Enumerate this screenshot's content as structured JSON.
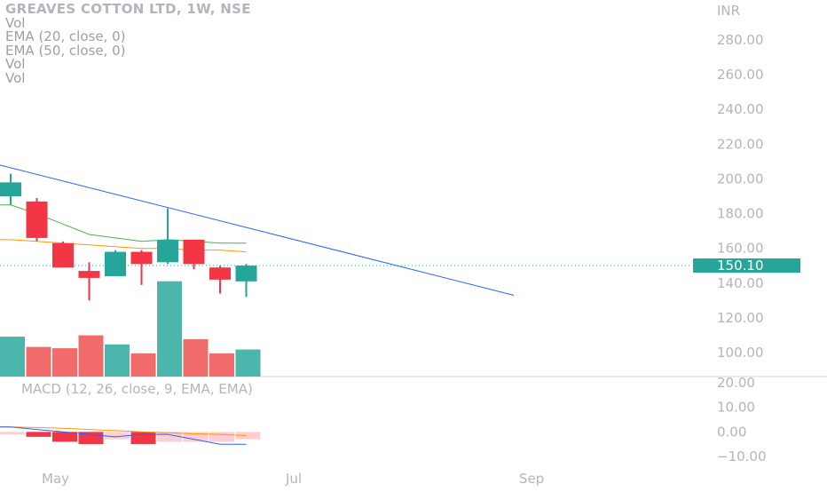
{
  "legend": {
    "title": "GREAVES COTTON LTD, 1W, NSE",
    "lines": [
      "Vol",
      "EMA (20, close, 0)",
      "EMA (50, close, 0)",
      "Vol",
      "Vol"
    ]
  },
  "currency": "INR",
  "price_axis_ticks": [
    "280.00",
    "260.00",
    "240.00",
    "220.00",
    "200.00",
    "180.00",
    "160.00",
    "140.00",
    "120.00",
    "100.00"
  ],
  "last_price_label": "150.10",
  "macd_label": "MACD (12, 26, close, 9, EMA, EMA)",
  "macd_axis_ticks": [
    "20.00",
    "10.00",
    "0.00",
    "−10.00"
  ],
  "time_axis_labels": [
    "May",
    "Jul",
    "Sep"
  ],
  "colors": {
    "up": "#26a69a",
    "down": "#f23645",
    "vol_up": "#4db6ac",
    "vol_down": "#f26b6b",
    "ema20": "#4caf50",
    "ema50": "#ff9800",
    "trendline": "#2962ff",
    "macd_line": "#2962ff",
    "signal_line": "#ff9800",
    "hist_neg": "#f23645",
    "hist_neg_light": "#ffcdd2"
  },
  "chart_data": {
    "type": "candlestick",
    "title": "GREAVES COTTON LTD, 1W, NSE",
    "price_ylim": [
      90,
      290
    ],
    "candles": [
      {
        "o": 190,
        "h": 203,
        "l": 185,
        "c": 198
      },
      {
        "o": 187,
        "h": 189,
        "l": 164,
        "c": 166
      },
      {
        "o": 163,
        "h": 164,
        "l": 149,
        "c": 149
      },
      {
        "o": 147,
        "h": 152,
        "l": 130,
        "c": 143
      },
      {
        "o": 144,
        "h": 159,
        "l": 144,
        "c": 158
      },
      {
        "o": 158,
        "h": 159,
        "l": 139,
        "c": 151
      },
      {
        "o": 152,
        "h": 183,
        "l": 151,
        "c": 165
      },
      {
        "o": 165,
        "h": 165,
        "l": 148,
        "c": 151
      },
      {
        "o": 149,
        "h": 150,
        "l": 134,
        "c": 142
      },
      {
        "o": 141,
        "h": 151,
        "l": 132,
        "c": 150.1
      }
    ],
    "volume_relative": [
      0.31,
      0.23,
      0.22,
      0.32,
      0.25,
      0.18,
      0.74,
      0.29,
      0.18,
      0.21
    ],
    "ema20": [
      185,
      180,
      174,
      168,
      166,
      164,
      165,
      164,
      163,
      163
    ],
    "ema50": [
      165,
      164,
      163,
      162,
      161,
      160,
      160,
      159,
      159,
      158
    ],
    "trendline": {
      "start": 208,
      "end": 133
    },
    "last_price": 150.1,
    "macd_ylim": [
      -15,
      22
    ],
    "macd": [
      2,
      1,
      0,
      -1,
      -2,
      -1,
      -1,
      -3,
      -5,
      -5
    ],
    "signal": [
      2,
      1.8,
      1.5,
      1,
      0.5,
      0,
      -0.3,
      -0.8,
      -1,
      -1.5
    ],
    "histogram": [
      -1,
      -2,
      -4,
      -5,
      -3,
      -5,
      -4,
      -4,
      -4,
      -3
    ],
    "x_labels": [
      "May",
      "Jul",
      "Sep"
    ]
  }
}
